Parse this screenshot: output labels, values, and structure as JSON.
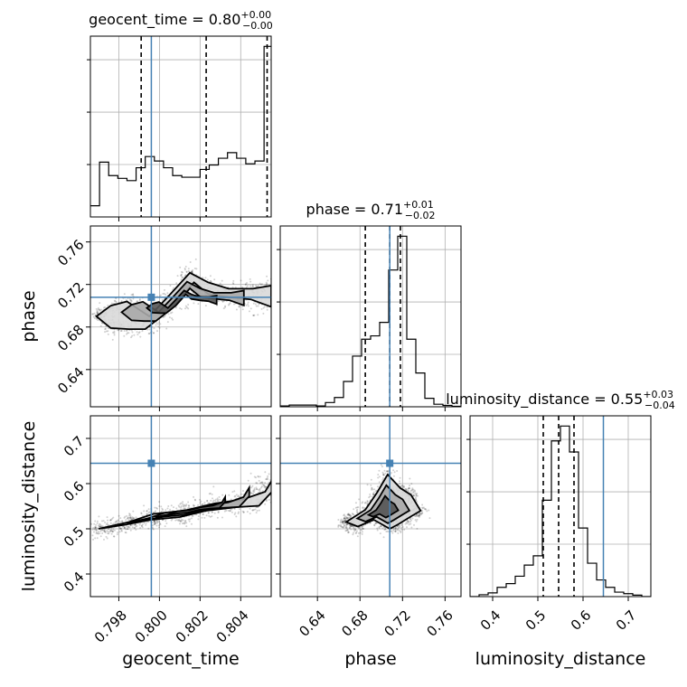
{
  "chart_data": {
    "type": "corner",
    "parameters": [
      "geocent_time",
      "phase",
      "luminosity_distance"
    ],
    "truths": [
      0.7996,
      0.708,
      0.645
    ],
    "ranges": [
      [
        0.7966,
        0.8055
      ],
      [
        0.605,
        0.775
      ],
      [
        0.35,
        0.75
      ]
    ],
    "ticks": [
      {
        "values": [
          0.798,
          0.8,
          0.802,
          0.804
        ],
        "labels": [
          "0.798",
          "0.800",
          "0.802",
          "0.804"
        ]
      },
      {
        "values": [
          0.64,
          0.68,
          0.72,
          0.76
        ],
        "labels": [
          "0.64",
          "0.68",
          "0.72",
          "0.76"
        ]
      },
      {
        "values": [
          0.4,
          0.5,
          0.6,
          0.7
        ],
        "labels": [
          "0.4",
          "0.5",
          "0.6",
          "0.7"
        ]
      }
    ],
    "titles": [
      {
        "text": "geocent_time = 0.80",
        "sup": "+0.00",
        "sub": "−0.00"
      },
      {
        "text": "phase = 0.71",
        "sup": "+0.01",
        "sub": "−0.02"
      },
      {
        "text": "luminosity_distance = 0.55",
        "sup": "+0.03",
        "sub": "−0.04"
      }
    ],
    "quantiles": [
      [
        0.7991,
        0.8023,
        0.8053
      ],
      [
        0.685,
        0.708,
        0.718
      ],
      [
        0.512,
        0.546,
        0.58
      ]
    ],
    "histograms": [
      {
        "edges": [
          0.7966,
          0.79705,
          0.7975,
          0.79795,
          0.7984,
          0.79885,
          0.7993,
          0.79975,
          0.8002,
          0.80065,
          0.8011,
          0.80155,
          0.802,
          0.80245,
          0.8029,
          0.80335,
          0.8038,
          0.80425,
          0.8047,
          0.80515,
          0.8056
        ],
        "counts": [
          0.2,
          0.98,
          0.74,
          0.69,
          0.65,
          0.88,
          1.08,
          1.0,
          0.88,
          0.74,
          0.71,
          0.71,
          0.85,
          0.93,
          1.05,
          1.15,
          1.05,
          0.95,
          1.0,
          3.05
        ]
      },
      {
        "edges": [
          0.605,
          0.6135,
          0.622,
          0.6305,
          0.639,
          0.6475,
          0.656,
          0.6645,
          0.673,
          0.6815,
          0.69,
          0.6985,
          0.707,
          0.7155,
          0.724,
          0.7325,
          0.741,
          0.7495,
          0.758,
          0.7665,
          0.775
        ],
        "counts": [
          0.05,
          0.1,
          0.1,
          0.1,
          0.05,
          0.25,
          0.55,
          1.5,
          3.0,
          4.0,
          4.2,
          5.0,
          8.1,
          10.1,
          4.0,
          2.0,
          0.5,
          0.15,
          0.08,
          0.03
        ]
      },
      {
        "edges": [
          0.35,
          0.37,
          0.39,
          0.41,
          0.43,
          0.45,
          0.47,
          0.49,
          0.51,
          0.53,
          0.55,
          0.57,
          0.59,
          0.61,
          0.63,
          0.65,
          0.67,
          0.69,
          0.71,
          0.73,
          0.75
        ],
        "counts": [
          0.0,
          0.05,
          0.1,
          0.25,
          0.35,
          0.55,
          0.85,
          1.1,
          2.6,
          4.2,
          4.6,
          3.9,
          1.85,
          0.9,
          0.45,
          0.25,
          0.12,
          0.08,
          0.04,
          0.0
        ]
      }
    ],
    "contours_2d": [
      {
        "x_param": "geocent_time",
        "y_param": "phase",
        "path": [
          [
            0.7969,
            0.69
          ],
          [
            0.7976,
            0.7
          ],
          [
            0.7984,
            0.704
          ],
          [
            0.7995,
            0.69
          ],
          [
            0.8004,
            0.708
          ],
          [
            0.8015,
            0.731
          ],
          [
            0.8024,
            0.722
          ],
          [
            0.8034,
            0.716
          ],
          [
            0.8046,
            0.716
          ],
          [
            0.8055,
            0.719
          ],
          [
            0.8055,
            0.699
          ],
          [
            0.8045,
            0.706
          ],
          [
            0.8034,
            0.708
          ],
          [
            0.8024,
            0.711
          ],
          [
            0.8017,
            0.722
          ],
          [
            0.8005,
            0.696
          ],
          [
            0.7993,
            0.678
          ],
          [
            0.7985,
            0.678
          ],
          [
            0.7976,
            0.679
          ],
          [
            0.7969,
            0.69
          ]
        ]
      },
      {
        "x_param": "geocent_time",
        "y_param": "luminosity_distance",
        "path": [
          [
            0.797,
            0.5
          ],
          [
            0.7985,
            0.515
          ],
          [
            0.7997,
            0.533
          ],
          [
            0.8012,
            0.54
          ],
          [
            0.8027,
            0.556
          ],
          [
            0.8041,
            0.565
          ],
          [
            0.8052,
            0.582
          ],
          [
            0.8056,
            0.612
          ],
          [
            0.8056,
            0.585
          ],
          [
            0.8049,
            0.551
          ],
          [
            0.8038,
            0.548
          ],
          [
            0.8023,
            0.54
          ],
          [
            0.801,
            0.526
          ],
          [
            0.7996,
            0.52
          ],
          [
            0.7983,
            0.509
          ],
          [
            0.797,
            0.5
          ]
        ]
      },
      {
        "x_param": "phase",
        "y_param": "luminosity_distance",
        "path": [
          [
            0.667,
            0.515
          ],
          [
            0.685,
            0.542
          ],
          [
            0.696,
            0.58
          ],
          [
            0.706,
            0.62
          ],
          [
            0.718,
            0.59
          ],
          [
            0.728,
            0.575
          ],
          [
            0.737,
            0.54
          ],
          [
            0.727,
            0.526
          ],
          [
            0.716,
            0.51
          ],
          [
            0.708,
            0.5
          ],
          [
            0.693,
            0.52
          ],
          [
            0.678,
            0.505
          ],
          [
            0.667,
            0.515
          ]
        ]
      }
    ]
  }
}
